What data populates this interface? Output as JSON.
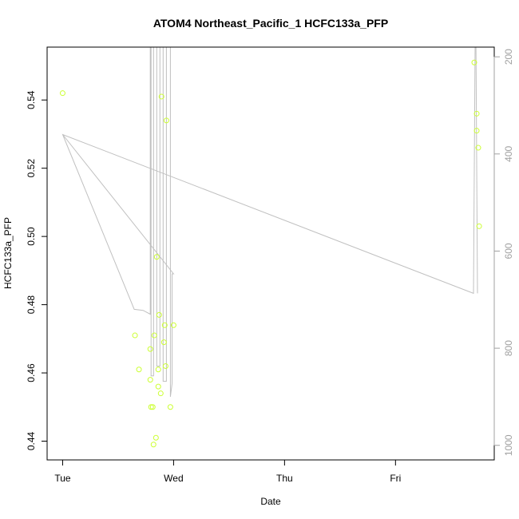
{
  "chart_data": {
    "type": "scatter",
    "title": "ATOM4 Northeast_Pacific_1 HCFC133a_PFP",
    "xlabel": "Date",
    "ylabel": "HCFC133a_PFP",
    "x_unit": "days since Tue 00:00",
    "xlim": [
      -0.14,
      3.89
    ],
    "ylim": [
      0.4345,
      0.5555
    ],
    "x_ticks": [
      {
        "value": 0,
        "label": "Tue"
      },
      {
        "value": 1,
        "label": "Wed"
      },
      {
        "value": 2,
        "label": "Thu"
      },
      {
        "value": 3,
        "label": "Fri"
      }
    ],
    "y_ticks": [
      {
        "value": 0.44,
        "label": "0.44"
      },
      {
        "value": 0.46,
        "label": "0.46"
      },
      {
        "value": 0.48,
        "label": "0.48"
      },
      {
        "value": 0.5,
        "label": "0.50"
      },
      {
        "value": 0.52,
        "label": "0.52"
      },
      {
        "value": 0.54,
        "label": "0.54"
      }
    ],
    "y2lim": [
      1030,
      180
    ],
    "y2_ticks": [
      {
        "value": 200,
        "label": "200"
      },
      {
        "value": 400,
        "label": "400"
      },
      {
        "value": 600,
        "label": "600"
      },
      {
        "value": 800,
        "label": "800"
      },
      {
        "value": 1000,
        "label": "1000"
      }
    ],
    "grid": false,
    "colors": {
      "points": "#ccff33",
      "line": "#c0c0c0",
      "axis": "#000000",
      "right_axis_text": "#a0a0a0"
    },
    "points": [
      {
        "x": 0.0,
        "y": 0.542
      },
      {
        "x": 0.652,
        "y": 0.471
      },
      {
        "x": 0.688,
        "y": 0.461
      },
      {
        "x": 0.79,
        "y": 0.467
      },
      {
        "x": 0.79,
        "y": 0.458
      },
      {
        "x": 0.797,
        "y": 0.45
      },
      {
        "x": 0.812,
        "y": 0.45
      },
      {
        "x": 0.819,
        "y": 0.439
      },
      {
        "x": 0.826,
        "y": 0.471
      },
      {
        "x": 0.841,
        "y": 0.441
      },
      {
        "x": 0.848,
        "y": 0.494
      },
      {
        "x": 0.862,
        "y": 0.461
      },
      {
        "x": 0.862,
        "y": 0.456
      },
      {
        "x": 0.87,
        "y": 0.477
      },
      {
        "x": 0.884,
        "y": 0.454
      },
      {
        "x": 0.891,
        "y": 0.541
      },
      {
        "x": 0.913,
        "y": 0.469
      },
      {
        "x": 0.92,
        "y": 0.474
      },
      {
        "x": 0.928,
        "y": 0.462
      },
      {
        "x": 0.935,
        "y": 0.534
      },
      {
        "x": 0.971,
        "y": 0.45
      },
      {
        "x": 1.0,
        "y": 0.474
      },
      {
        "x": 3.71,
        "y": 0.551
      },
      {
        "x": 3.732,
        "y": 0.536
      },
      {
        "x": 3.732,
        "y": 0.531
      },
      {
        "x": 3.746,
        "y": 0.526
      },
      {
        "x": 3.754,
        "y": 0.503
      }
    ],
    "pressure_line": [
      [
        0.0,
        360
      ],
      [
        1.0,
        647
      ],
      [
        0.986,
        647
      ],
      [
        0.986,
        873
      ],
      [
        0.971,
        900
      ],
      [
        0.971,
        180
      ],
      [
        0.935,
        180
      ],
      [
        0.935,
        868
      ],
      [
        0.906,
        868
      ],
      [
        0.906,
        180
      ],
      [
        0.877,
        180
      ],
      [
        0.877,
        837
      ],
      [
        0.848,
        837
      ],
      [
        0.848,
        180
      ],
      [
        0.819,
        180
      ],
      [
        0.819,
        857
      ],
      [
        0.797,
        857
      ],
      [
        0.797,
        180
      ],
      [
        0.79,
        180
      ],
      [
        0.79,
        730
      ],
      [
        0.725,
        722
      ],
      [
        0.645,
        720
      ],
      [
        0.0,
        360
      ],
      [
        3.703,
        687
      ],
      [
        3.717,
        180
      ],
      [
        3.725,
        180
      ],
      [
        3.739,
        687
      ]
    ]
  }
}
